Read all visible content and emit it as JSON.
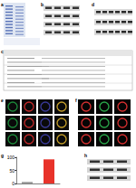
{
  "panels": [
    {
      "letter": "a"
    },
    {
      "letter": "b"
    },
    {
      "letter": "c"
    },
    {
      "letter": "d"
    },
    {
      "letter": "e"
    },
    {
      "letter": "f"
    },
    {
      "letter": "g"
    },
    {
      "letter": "h"
    }
  ],
  "chart_data": {
    "type": "bar",
    "categories": [
      null,
      null
    ],
    "values": [
      6,
      92
    ],
    "colors": [
      "#9a9a9a",
      "#e8332a"
    ],
    "ylim": [
      0,
      100
    ],
    "yticks": [
      0,
      50,
      100
    ],
    "grid": false,
    "tick_labels": "y"
  }
}
